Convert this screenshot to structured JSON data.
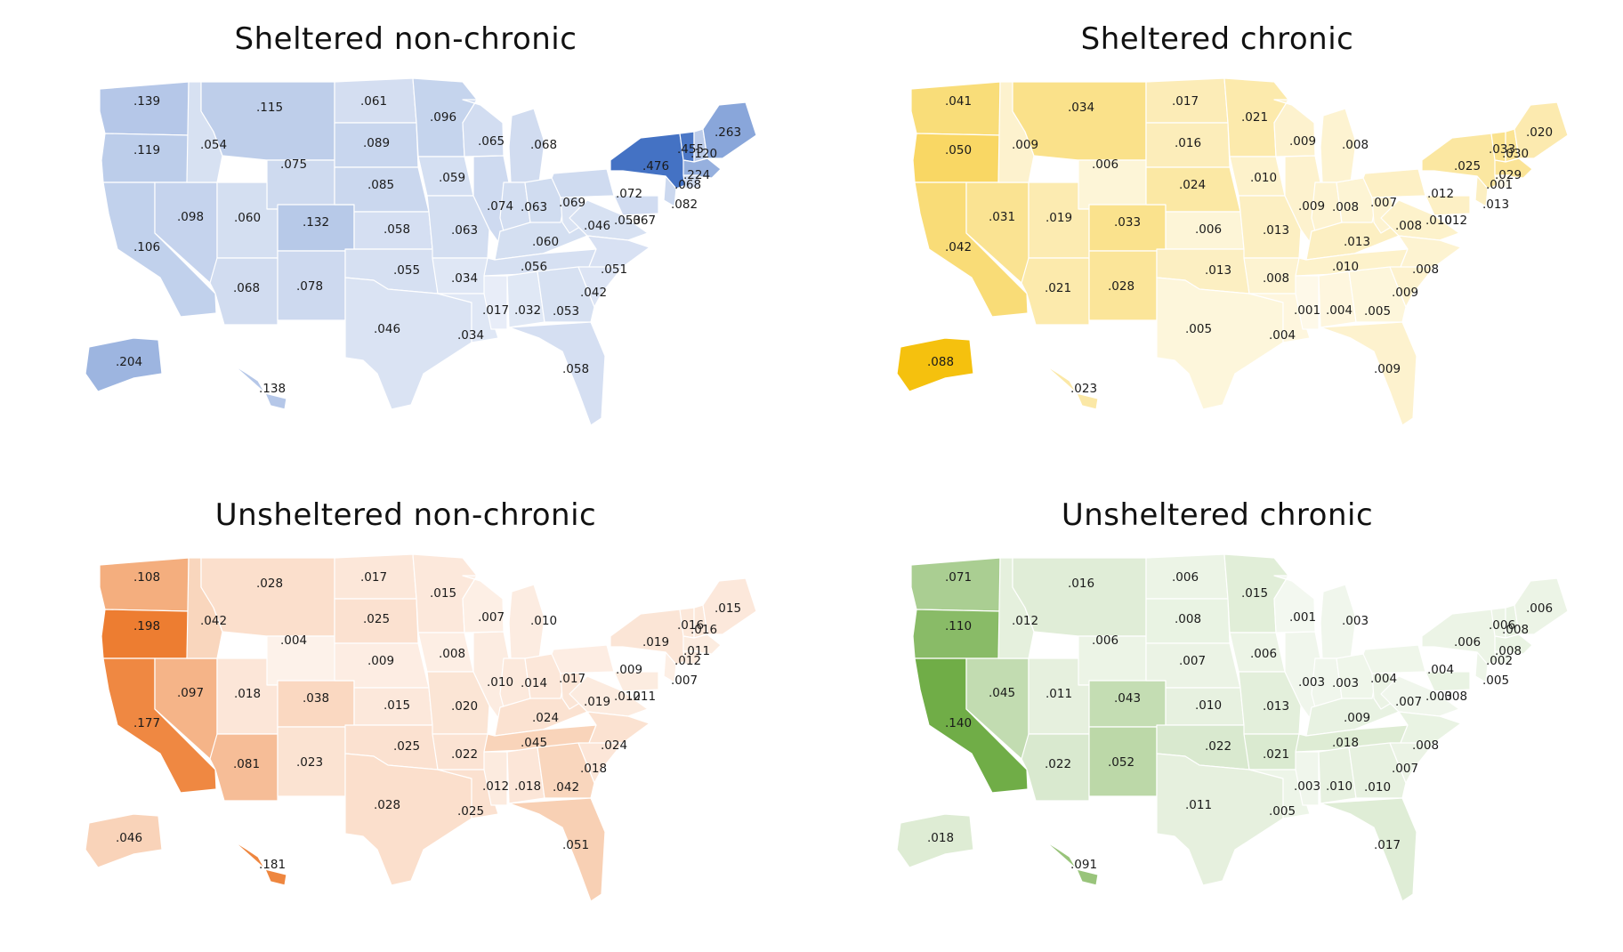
{
  "panels": [
    {
      "id": "sheltered-non-chronic",
      "title": "Sheltered non-chronic",
      "color": "#4472C4",
      "values": {
        "WA": ".139",
        "OR": ".119",
        "CA": ".106",
        "NV": ".098",
        "ID": ".054",
        "MT": ".115",
        "WY": ".075",
        "UT": ".060",
        "CO": ".132",
        "AZ": ".068",
        "NM": ".078",
        "ND": ".061",
        "SD": ".089",
        "NE": ".085",
        "KS": ".058",
        "OK": ".055",
        "TX": ".046",
        "MN": ".096",
        "IA": ".059",
        "MO": ".063",
        "AR": ".034",
        "LA": ".034",
        "WI": ".065",
        "IL": ".074",
        "MS": ".017",
        "MI": ".068",
        "IN": ".063",
        "KY": ".060",
        "TN": ".056",
        "AL": ".032",
        "GA": ".053",
        "FL": ".058",
        "OH": ".069",
        "WV": ".046",
        "VA": ".053",
        "NC": ".051",
        "SC": ".042",
        "PA": ".072",
        "NY": ".476",
        "VT": ".455",
        "NH": ".120",
        "ME": ".263",
        "MA": ".224",
        "CT": ".068",
        "NJ": ".082",
        "MD": ".067",
        "AK": ".204",
        "HI": ".138"
      }
    },
    {
      "id": "sheltered-chronic",
      "title": "Sheltered chronic",
      "color": "#F5C10E",
      "values": {
        "WA": ".041",
        "OR": ".050",
        "CA": ".042",
        "NV": ".031",
        "ID": ".009",
        "MT": ".034",
        "WY": ".006",
        "UT": ".019",
        "CO": ".033",
        "AZ": ".021",
        "NM": ".028",
        "ND": ".017",
        "SD": ".016",
        "NE": ".024",
        "KS": ".006",
        "OK": ".013",
        "TX": ".005",
        "MN": ".021",
        "IA": ".010",
        "MO": ".013",
        "AR": ".008",
        "LA": ".004",
        "WI": ".009",
        "IL": ".009",
        "MS": ".001",
        "MI": ".008",
        "IN": ".008",
        "KY": ".013",
        "TN": ".010",
        "AL": ".004",
        "GA": ".005",
        "FL": ".009",
        "OH": ".007",
        "WV": ".008",
        "VA": ".010",
        "NC": ".008",
        "SC": ".009",
        "PA": ".012",
        "NY": ".025",
        "VT": ".033",
        "NH": ".030",
        "ME": ".020",
        "MA": ".029",
        "CT": ".001",
        "NJ": ".013",
        "MD": ".012",
        "AK": ".088",
        "HI": ".023"
      }
    },
    {
      "id": "unsheltered-non-chronic",
      "title": "Unsheltered non-chronic",
      "color": "#ED7D31",
      "values": {
        "WA": ".108",
        "OR": ".198",
        "CA": ".177",
        "NV": ".097",
        "ID": ".042",
        "MT": ".028",
        "WY": ".004",
        "UT": ".018",
        "CO": ".038",
        "AZ": ".081",
        "NM": ".023",
        "ND": ".017",
        "SD": ".025",
        "NE": ".009",
        "KS": ".015",
        "OK": ".025",
        "TX": ".028",
        "MN": ".015",
        "IA": ".008",
        "MO": ".020",
        "AR": ".022",
        "LA": ".025",
        "WI": ".007",
        "IL": ".010",
        "MS": ".012",
        "MI": ".010",
        "IN": ".014",
        "KY": ".024",
        "TN": ".045",
        "AL": ".018",
        "GA": ".042",
        "FL": ".051",
        "OH": ".017",
        "WV": ".019",
        "VA": ".012",
        "NC": ".024",
        "SC": ".018",
        "PA": ".009",
        "NY": ".019",
        "VT": ".016",
        "NH": ".016",
        "ME": ".015",
        "MA": ".011",
        "CT": ".012",
        "NJ": ".007",
        "MD": ".011",
        "AK": ".046",
        "HI": ".181"
      }
    },
    {
      "id": "unsheltered-chronic",
      "title": "Unsheltered chronic",
      "color": "#70AD47",
      "values": {
        "WA": ".071",
        "OR": ".110",
        "CA": ".140",
        "NV": ".045",
        "ID": ".012",
        "MT": ".016",
        "WY": ".006",
        "UT": ".011",
        "CO": ".043",
        "AZ": ".022",
        "NM": ".052",
        "ND": ".006",
        "SD": ".008",
        "NE": ".007",
        "KS": ".010",
        "OK": ".022",
        "TX": ".011",
        "MN": ".015",
        "IA": ".006",
        "MO": ".013",
        "AR": ".021",
        "LA": ".005",
        "WI": ".001",
        "IL": ".003",
        "MS": ".003",
        "MI": ".003",
        "IN": ".003",
        "KY": ".009",
        "TN": ".018",
        "AL": ".010",
        "GA": ".010",
        "FL": ".017",
        "OH": ".004",
        "WV": ".007",
        "VA": ".003",
        "NC": ".008",
        "SC": ".007",
        "PA": ".004",
        "NY": ".006",
        "VT": ".006",
        "NH": ".008",
        "ME": ".006",
        "MA": ".008",
        "CT": ".002",
        "NJ": ".005",
        "MD": ".008",
        "AK": ".018",
        "HI": ".091"
      }
    }
  ]
}
